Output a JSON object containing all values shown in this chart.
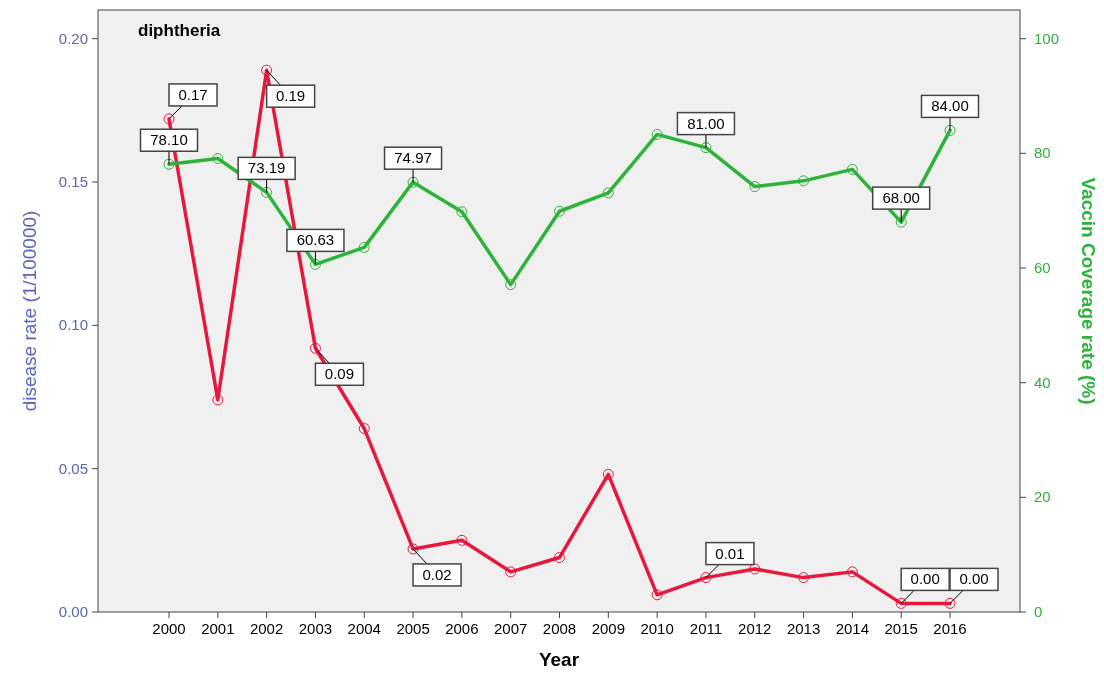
{
  "chart_data": {
    "type": "line",
    "title": "diphtheria",
    "xlabel": "Year",
    "ylabel": "disease rate (1/100000)",
    "y2label": "Vaccin Coverage rate (%)",
    "categories": [
      "2000",
      "2001",
      "2002",
      "2003",
      "2004",
      "2005",
      "2006",
      "2007",
      "2008",
      "2009",
      "2010",
      "2011",
      "2012",
      "2013",
      "2014",
      "2015",
      "2016"
    ],
    "series": [
      {
        "color": "#e8173c",
        "values": [
          0.172,
          0.074,
          0.189,
          0.092,
          0.064,
          0.022,
          0.025,
          0.014,
          0.019,
          0.048,
          0.006,
          0.012,
          0.015,
          0.012,
          0.014,
          0.003,
          0.003
        ],
        "value_labels": [
          "0.17",
          null,
          "0.19",
          "0.09",
          null,
          "0.02",
          null,
          null,
          null,
          null,
          null,
          "0.01",
          null,
          null,
          null,
          "0.00",
          "0.00"
        ]
      },
      {
        "color": "#2db33a",
        "axis": "y2",
        "values": [
          78.1,
          79.1,
          73.19,
          60.63,
          63.6,
          74.97,
          69.8,
          57.1,
          69.9,
          73.1,
          83.3,
          81.0,
          74.2,
          75.2,
          77.2,
          68.0,
          84.0
        ],
        "value_labels": [
          "78.10",
          null,
          "73.19",
          "60.63",
          null,
          "74.97",
          null,
          null,
          null,
          null,
          null,
          "81.00",
          null,
          null,
          null,
          "68.00",
          "84.00"
        ]
      }
    ],
    "ylim": [
      0,
      0.21
    ],
    "yticks": [
      {
        "value": 0,
        "label": "0.00"
      },
      {
        "value": 0.05,
        "label": "0.05"
      },
      {
        "value": 0.1,
        "label": "0.10"
      },
      {
        "value": 0.15,
        "label": "0.15"
      },
      {
        "value": 0.2,
        "label": "0.20"
      }
    ],
    "y2lim": [
      0,
      105
    ],
    "y2ticks": [
      0,
      20,
      40,
      60,
      80,
      100
    ],
    "marker": "circle",
    "line_style": "solid",
    "grid": false
  }
}
